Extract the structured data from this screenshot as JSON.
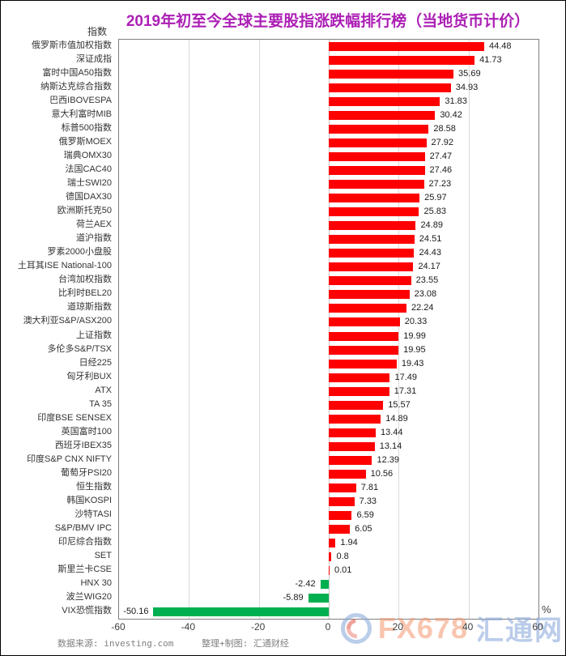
{
  "title": "2019年初至今全球主要股指涨跌幅排行榜（当地货币计价）",
  "y_axis_header": "指数",
  "unit_label": "%",
  "footer": {
    "source": "数据来源: investing.com",
    "credit": "整理+制图: 汇通财经"
  },
  "watermark": {
    "brand": "FX678",
    "brand_cn": "汇通网"
  },
  "colors": {
    "title": "#AC1FB5",
    "positive_bar": "#FF0000",
    "negative_bar": "#00B050",
    "gridline": "#D9D9D9",
    "plot_border": "#7F7F7F",
    "label_text": "#333333",
    "footer_text": "#808080"
  },
  "chart_data": {
    "type": "bar",
    "orientation": "horizontal",
    "title": "2019年初至今全球主要股指涨跌幅排行榜（当地货币计价）",
    "xlabel": "%",
    "ylabel": "指数",
    "xlim": [
      -60,
      60
    ],
    "xticks": [
      -60,
      -40,
      -20,
      0,
      20,
      40,
      60
    ],
    "grid": true,
    "categories": [
      "俄罗斯市值加权指数",
      "深证成指",
      "富时中国A50指数",
      "纳斯达克综合指数",
      "巴西IBOVESPA",
      "意大利富时MIB",
      "标普500指数",
      "俄罗斯MOEX",
      "瑞典OMX30",
      "法国CAC40",
      "瑞士SWI20",
      "德国DAX30",
      "欧洲斯托克50",
      "荷兰AEX",
      "道沪指数",
      "罗素2000小盘股",
      "土耳其ISE National-100",
      "台湾加权指数",
      "比利时BEL20",
      "道琼斯指数",
      "澳大利亚S&P/ASX200",
      "上证指数",
      "多伦多S&P/TSX",
      "日经225",
      "匈牙利BUX",
      "ATX",
      "TA 35",
      "印度BSE SENSEX",
      "英国富时100",
      "西班牙IBEX35",
      "印度S&P CNX NIFTY",
      "葡萄牙PSI20",
      "恒生指数",
      "韩国KOSPI",
      "沙特TASI",
      "S&P/BMV IPC",
      "印尼综合指数",
      "SET",
      "斯里兰卡CSE",
      "HNX 30",
      "波兰WIG20",
      "VIX恐慌指数"
    ],
    "values": [
      44.48,
      41.73,
      35.69,
      34.93,
      31.83,
      30.42,
      28.58,
      27.92,
      27.47,
      27.46,
      27.23,
      25.97,
      25.83,
      24.89,
      24.51,
      24.43,
      24.17,
      23.55,
      23.08,
      22.24,
      20.33,
      19.99,
      19.95,
      19.43,
      17.49,
      17.31,
      15.57,
      14.89,
      13.44,
      13.14,
      12.39,
      10.56,
      7.81,
      7.33,
      6.59,
      6.05,
      1.94,
      0.8,
      0.01,
      -2.42,
      -5.89,
      -50.16
    ],
    "value_labels": [
      "44.48",
      "41.73",
      "35.69",
      "34.93",
      "31.83",
      "30.42",
      "28.58",
      "27.92",
      "27.47",
      "27.46",
      "27.23",
      "25.97",
      "25.83",
      "24.89",
      "24.51",
      "24.43",
      "24.17",
      "23.55",
      "23.08",
      "22.24",
      "20.33",
      "19.99",
      "19.95",
      "19.43",
      "17.49",
      "17.31",
      "15.57",
      "14.89",
      "13.44",
      "13.14",
      "12.39",
      "10.56",
      "7.81",
      "7.33",
      "6.59",
      "6.05",
      "1.94",
      "0.8",
      "0.01",
      "-2.42",
      "-5.89",
      "-50.16"
    ],
    "legend": null
  }
}
